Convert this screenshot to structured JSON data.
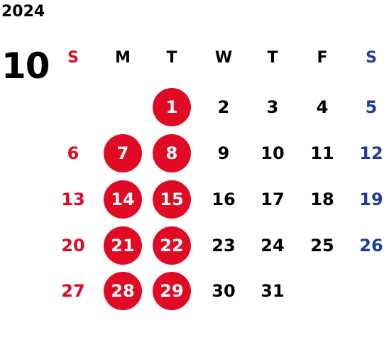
{
  "year": "2024",
  "month": "10",
  "colors": {
    "sunday": "#e00a24",
    "saturday": "#1f3f94",
    "weekday": "#000000",
    "highlight_bg": "#e00a24",
    "highlight_text": "#ffffff"
  },
  "weekday_headers": [
    "S",
    "M",
    "T",
    "W",
    "T",
    "F",
    "S"
  ],
  "weeks": [
    [
      "",
      "",
      "1",
      "2",
      "3",
      "4",
      "5"
    ],
    [
      "6",
      "7",
      "8",
      "9",
      "10",
      "11",
      "12"
    ],
    [
      "13",
      "14",
      "15",
      "16",
      "17",
      "18",
      "19"
    ],
    [
      "20",
      "21",
      "22",
      "23",
      "24",
      "25",
      "26"
    ],
    [
      "27",
      "28",
      "29",
      "30",
      "31",
      "",
      ""
    ]
  ],
  "highlighted_days": [
    "1",
    "7",
    "8",
    "14",
    "15",
    "21",
    "22",
    "28",
    "29"
  ]
}
